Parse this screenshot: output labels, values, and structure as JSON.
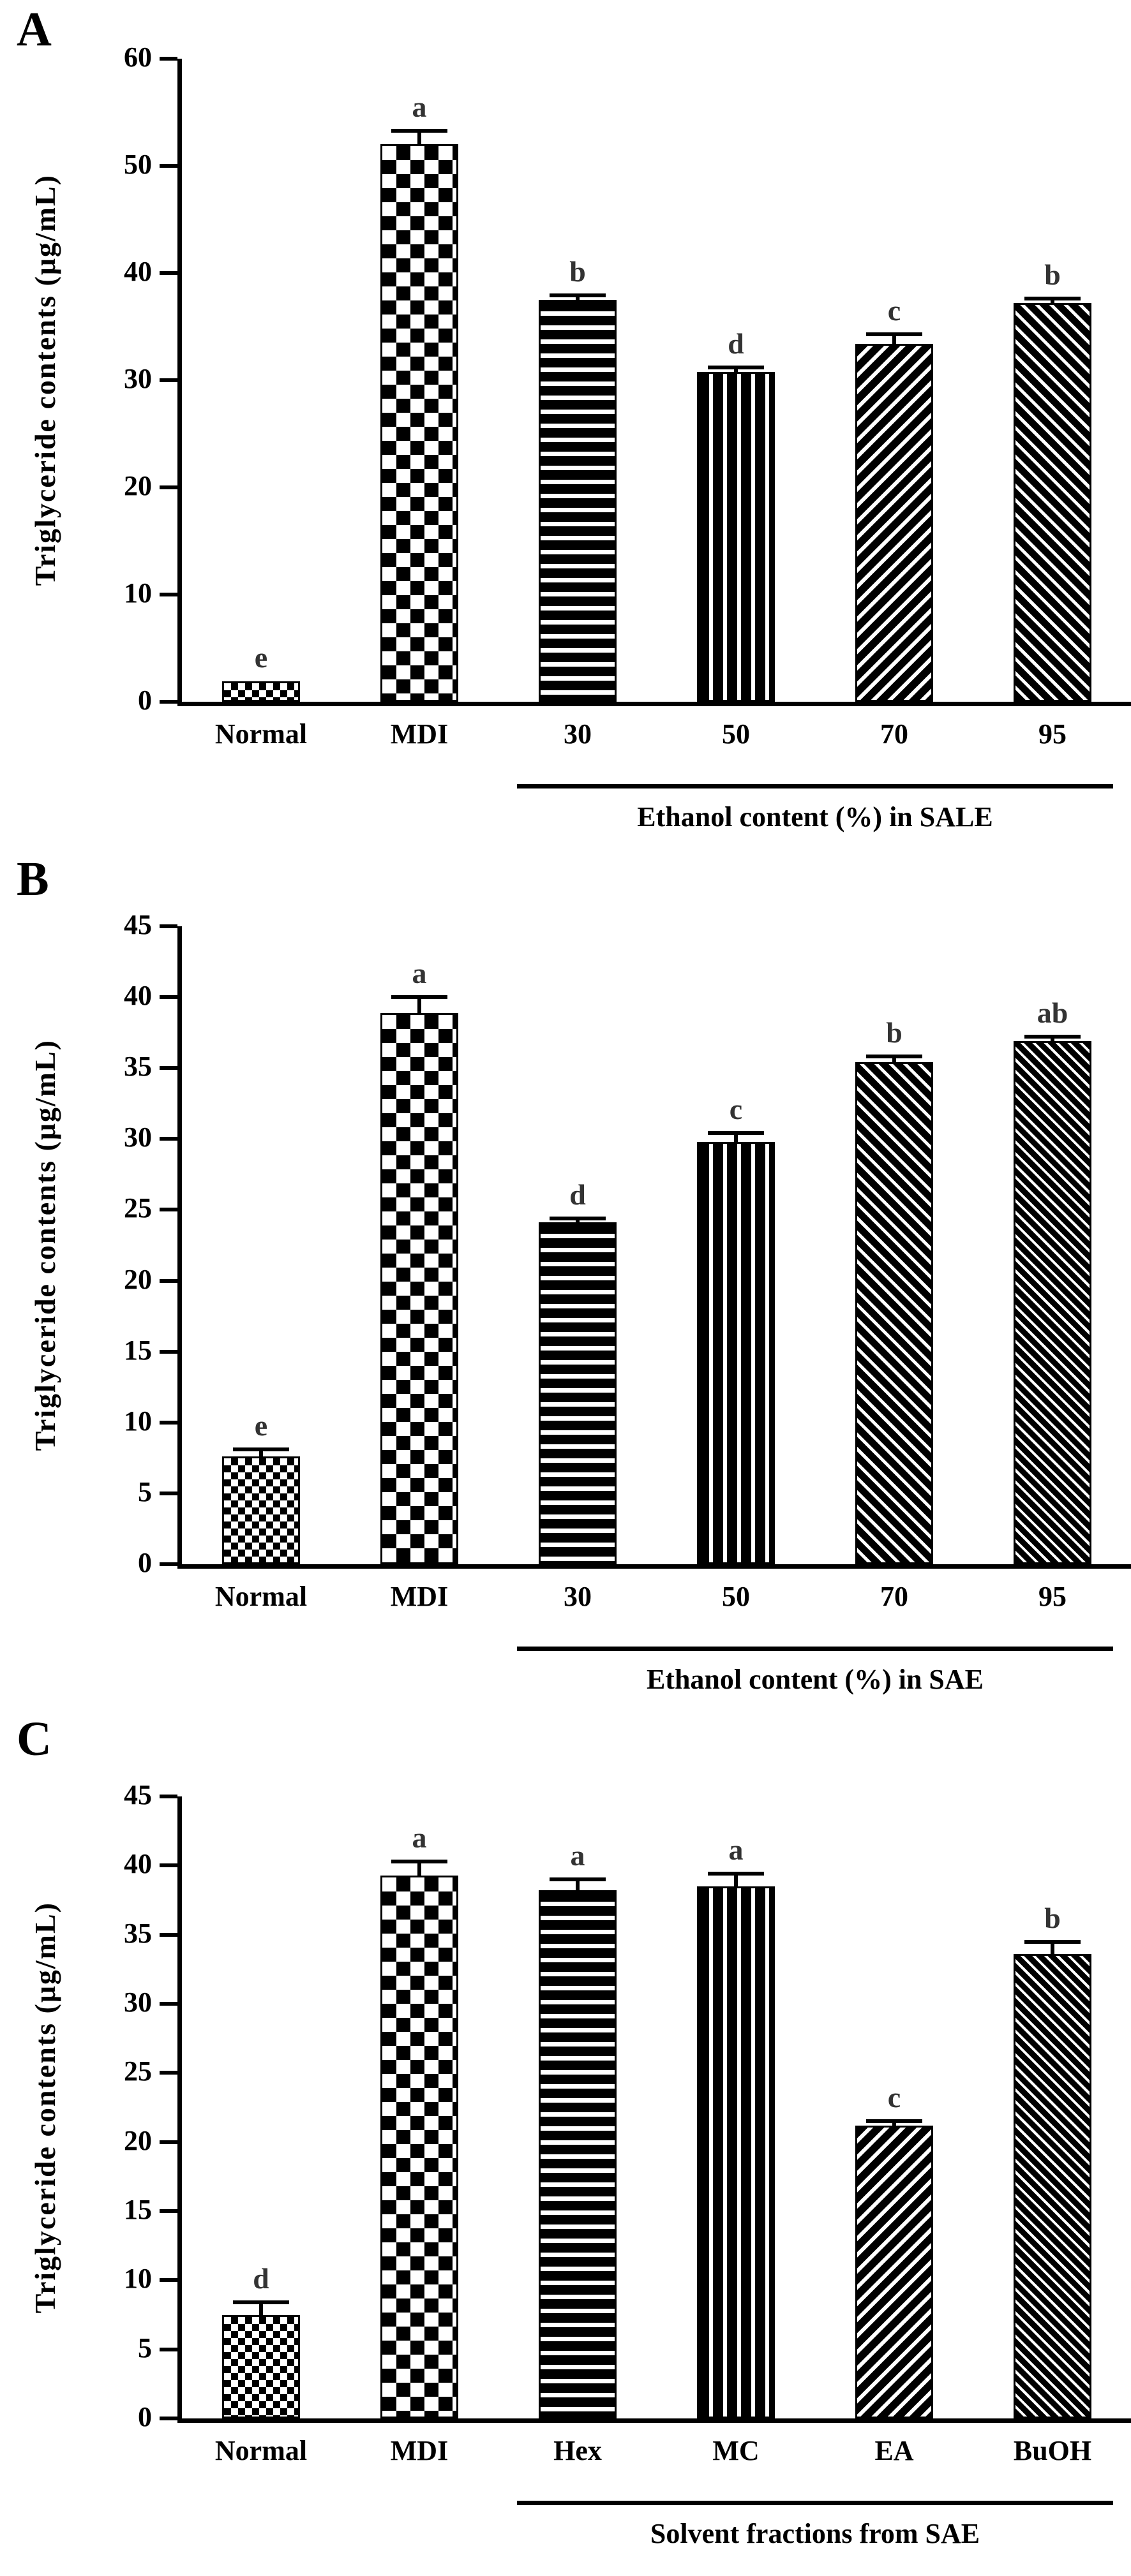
{
  "chart_data": [
    {
      "type": "bar",
      "panel_label": "A",
      "ylabel": "Triglyceride contents (μg/mL)",
      "ylim": [
        0,
        60
      ],
      "ytick_step": 10,
      "grid": false,
      "legend": "none",
      "categories": [
        "Normal",
        "MDI",
        "30",
        "50",
        "70",
        "95"
      ],
      "values": [
        1.9,
        52.0,
        37.5,
        30.8,
        33.4,
        37.2
      ],
      "errors": [
        0,
        1.3,
        0.4,
        0.4,
        0.9,
        0.4
      ],
      "sig_letters": [
        "e",
        "a",
        "b",
        "d",
        "c",
        "b"
      ],
      "patterns": [
        "checker-fine",
        "checker",
        "stripe-h",
        "stripe-v",
        "hatch-fwd",
        "hatch-back"
      ],
      "group_axis": {
        "label": "Ethanol content (%) in SALE",
        "start_index": 2,
        "end_index": 5
      }
    },
    {
      "type": "bar",
      "panel_label": "B",
      "ylabel": "Triglyceride contents (μg/mL)",
      "ylim": [
        0,
        45
      ],
      "ytick_step": 5,
      "grid": false,
      "legend": "none",
      "categories": [
        "Normal",
        "MDI",
        "30",
        "50",
        "70",
        "95"
      ],
      "values": [
        7.6,
        38.9,
        24.1,
        29.8,
        35.4,
        36.9
      ],
      "errors": [
        0.5,
        1.1,
        0.3,
        0.6,
        0.4,
        0.3
      ],
      "sig_letters": [
        "e",
        "a",
        "d",
        "c",
        "b",
        "ab"
      ],
      "patterns": [
        "checker-fine",
        "checker",
        "stripe-h",
        "stripe-v",
        "hatch-back",
        "weave-back"
      ],
      "group_axis": {
        "label": "Ethanol content (%) in SAE",
        "start_index": 2,
        "end_index": 5
      }
    },
    {
      "type": "bar",
      "panel_label": "C",
      "ylabel": "Triglyceride contents (μg/mL)",
      "ylim": [
        0,
        45
      ],
      "ytick_step": 5,
      "grid": false,
      "legend": "none",
      "categories": [
        "Normal",
        "MDI",
        "Hex",
        "MC",
        "EA",
        "BuOH"
      ],
      "values": [
        7.5,
        39.3,
        38.2,
        38.5,
        21.2,
        33.6
      ],
      "errors": [
        0.9,
        1.0,
        0.8,
        0.9,
        0.3,
        0.9
      ],
      "sig_letters": [
        "d",
        "a",
        "a",
        "a",
        "c",
        "b"
      ],
      "patterns": [
        "checker-fine",
        "checker",
        "stripe-h",
        "stripe-v",
        "hatch-fwd",
        "weave-back"
      ],
      "group_axis": {
        "label": "Solvent fractions from SAE",
        "start_index": 2,
        "end_index": 5
      }
    }
  ],
  "colors": {
    "ink": "#000000",
    "background": "#ffffff",
    "sig_letter": "#333333"
  }
}
